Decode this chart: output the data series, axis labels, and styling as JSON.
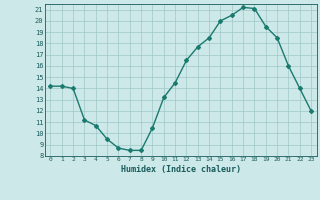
{
  "xlabel": "Humidex (Indice chaleur)",
  "ylabel": "",
  "x": [
    0,
    1,
    2,
    3,
    4,
    5,
    6,
    7,
    8,
    9,
    10,
    11,
    12,
    13,
    14,
    15,
    16,
    17,
    18,
    19,
    20,
    21,
    22,
    23
  ],
  "y": [
    14.2,
    14.2,
    14.0,
    11.2,
    10.7,
    9.5,
    8.7,
    8.5,
    8.5,
    10.5,
    13.2,
    14.5,
    16.5,
    17.7,
    18.5,
    20.0,
    20.5,
    21.2,
    21.1,
    19.5,
    18.5,
    16.0,
    14.0,
    12.0
  ],
  "line_color": "#1a7a6e",
  "bg_color": "#cce8e8",
  "grid_color": "#a0c8c8",
  "tick_label_color": "#1a5c5c",
  "ylim": [
    8,
    21.5
  ],
  "xlim": [
    -0.5,
    23.5
  ]
}
